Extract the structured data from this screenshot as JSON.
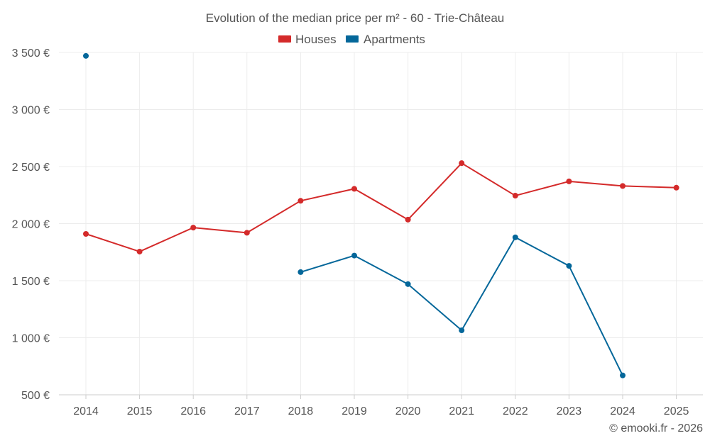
{
  "chart_data": {
    "type": "line",
    "title": "Evolution of the median price per m² - 60 - Trie-Château",
    "categories": [
      "2014",
      "2015",
      "2016",
      "2017",
      "2018",
      "2019",
      "2020",
      "2021",
      "2022",
      "2023",
      "2024",
      "2025"
    ],
    "y_ticks": [
      500,
      1000,
      1500,
      2000,
      2500,
      3000,
      3500
    ],
    "y_tick_labels": [
      "500 €",
      "1 000 €",
      "1 500 €",
      "2 000 €",
      "2 500 €",
      "3 000 €",
      "3 500 €"
    ],
    "ylim": [
      500,
      3500
    ],
    "grid": true,
    "legend_position": "top-center",
    "series": [
      {
        "name": "Houses",
        "color": "#d42a2a",
        "values": [
          1910,
          1755,
          1965,
          1920,
          2200,
          2305,
          2035,
          2530,
          2245,
          2370,
          2330,
          2315
        ]
      },
      {
        "name": "Apartments",
        "color": "#04679a",
        "values": [
          3470,
          null,
          null,
          null,
          1575,
          1720,
          1470,
          1065,
          1880,
          1630,
          670,
          null
        ]
      }
    ]
  },
  "credit": "© emooki.fr - 2026"
}
